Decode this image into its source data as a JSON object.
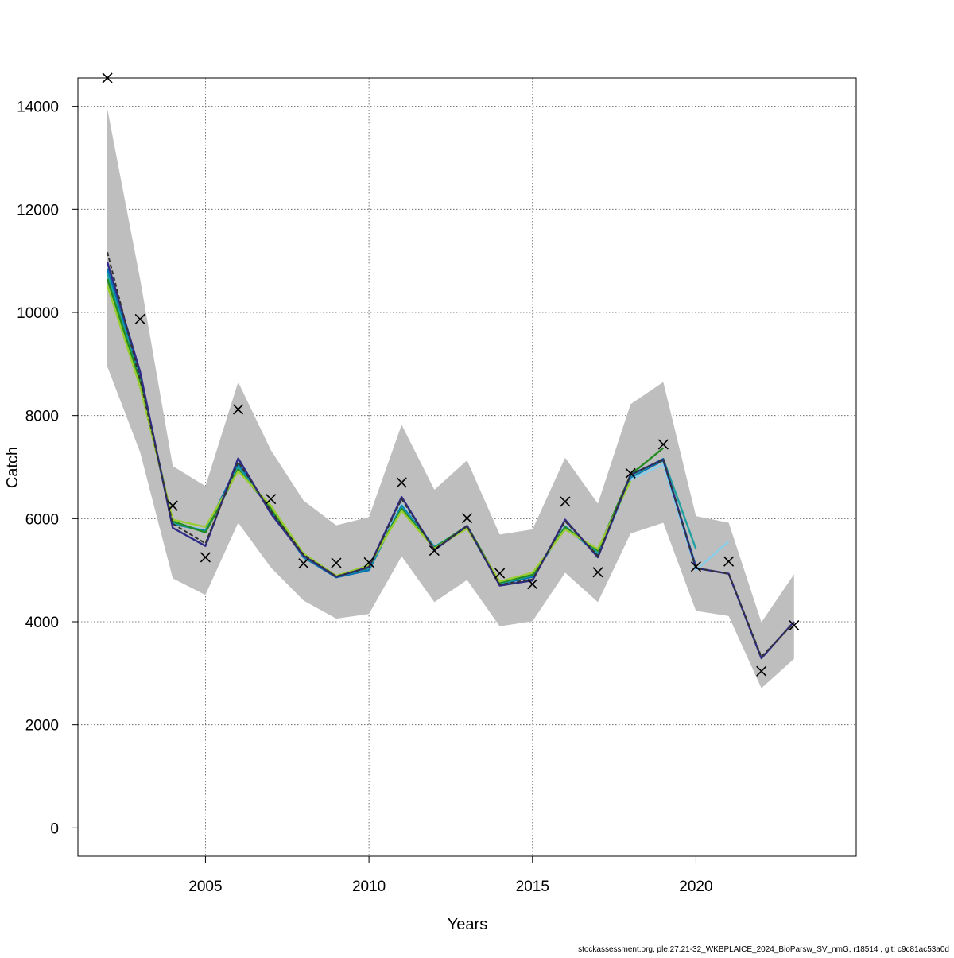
{
  "chart_data": {
    "type": "line",
    "xlabel": "Years",
    "ylabel": "Catch",
    "xlim": [
      2001.1,
      2024.9
    ],
    "ylim": [
      -550,
      14550
    ],
    "x_ticks": [
      2005,
      2010,
      2015,
      2020
    ],
    "y_ticks": [
      0,
      2000,
      4000,
      6000,
      8000,
      10000,
      12000,
      14000
    ],
    "grid": true,
    "footer": "stockassessment.org, ple.27.21-32_WKBPLAICE_2024_BioParsw_SV_nmG, r18514 , git: c9c81ac53a0d",
    "confidence_band": {
      "color": "#bebebe",
      "x": [
        2002,
        2003,
        2004,
        2005,
        2006,
        2007,
        2008,
        2009,
        2010,
        2011,
        2012,
        2013,
        2014,
        2015,
        2016,
        2017,
        2018,
        2019,
        2020,
        2021,
        2022,
        2023
      ],
      "upper": [
        13950,
        10650,
        7020,
        6630,
        8650,
        7330,
        6350,
        5870,
        6030,
        7820,
        6560,
        7130,
        5690,
        5790,
        7180,
        6290,
        8220,
        8650,
        6050,
        5920,
        3990,
        4920
      ],
      "lower": [
        8950,
        7290,
        4840,
        4520,
        5920,
        5050,
        4410,
        4060,
        4150,
        5270,
        4380,
        4810,
        3910,
        4010,
        4950,
        4380,
        5710,
        5920,
        4210,
        4110,
        2710,
        3280
      ]
    },
    "observed": {
      "marker": "x",
      "color": "#000000",
      "x": [
        2002,
        2003,
        2004,
        2005,
        2006,
        2007,
        2008,
        2009,
        2010,
        2011,
        2012,
        2013,
        2014,
        2015,
        2016,
        2017,
        2018,
        2019,
        2020,
        2021,
        2022,
        2023
      ],
      "values": [
        14550,
        9870,
        6250,
        5250,
        8120,
        6380,
        5130,
        5140,
        5150,
        6700,
        5380,
        6010,
        4940,
        4730,
        6330,
        4960,
        6880,
        7440,
        5070,
        5170,
        3040,
        3930
      ]
    },
    "series": [
      {
        "color": "#87ceeb",
        "dashed": false,
        "x": [
          2002,
          2003,
          2004,
          2005,
          2006,
          2007,
          2008,
          2009,
          2010,
          2011,
          2012,
          2013,
          2014,
          2015,
          2016,
          2017,
          2018,
          2019,
          2020,
          2021
        ],
        "values": [
          10800,
          8700,
          5900,
          5780,
          7020,
          6180,
          5260,
          4880,
          5050,
          6280,
          5460,
          5830,
          4740,
          4880,
          5860,
          5300,
          6760,
          7050,
          5000,
          5560
        ]
      },
      {
        "color": "#0072b2",
        "dashed": false,
        "x": [
          2002,
          2003,
          2004,
          2005,
          2006,
          2007,
          2008,
          2009,
          2010,
          2011,
          2012,
          2013,
          2014,
          2015,
          2016,
          2017,
          2018,
          2019,
          2020
        ],
        "values": [
          10850,
          8720,
          5900,
          5760,
          7060,
          6170,
          5250,
          4860,
          5000,
          6250,
          5450,
          5830,
          4730,
          4870,
          5850,
          5310,
          6800,
          7130,
          5070
        ]
      },
      {
        "color": "#20a0a0",
        "dashed": false,
        "x": [
          2002,
          2003,
          2004,
          2005,
          2006,
          2007,
          2008,
          2009,
          2010,
          2011,
          2012,
          2013,
          2014,
          2015,
          2016,
          2017,
          2018,
          2019,
          2020
        ],
        "values": [
          10750,
          8690,
          5920,
          5740,
          7000,
          6190,
          5270,
          4870,
          5040,
          6220,
          5440,
          5850,
          4740,
          4900,
          5840,
          5330,
          6820,
          7160,
          5410
        ]
      },
      {
        "color": "#228b22",
        "dashed": false,
        "x": [
          2002,
          2003,
          2004,
          2005,
          2006,
          2007,
          2008,
          2009,
          2010,
          2011,
          2012,
          2013,
          2014,
          2015,
          2016,
          2017,
          2018,
          2019
        ],
        "values": [
          10650,
          8650,
          5950,
          5730,
          6950,
          6200,
          5280,
          4880,
          5080,
          6190,
          5430,
          5860,
          4760,
          4910,
          5830,
          5380,
          6850,
          7370
        ]
      },
      {
        "color": "#9acd32",
        "dashed": false,
        "x": [
          2002,
          2003,
          2004,
          2005,
          2006,
          2007,
          2008,
          2009,
          2010,
          2011,
          2012,
          2013,
          2014,
          2015,
          2016,
          2017,
          2018
        ],
        "values": [
          10520,
          8560,
          5980,
          5840,
          6920,
          6250,
          5320,
          4890,
          5090,
          6150,
          5420,
          5810,
          4780,
          4950,
          5790,
          5410,
          6730
        ]
      },
      {
        "color": "#2e2a87",
        "dashed": false,
        "x": [
          2002,
          2003,
          2004,
          2005,
          2006,
          2007,
          2008,
          2009,
          2010,
          2011,
          2012,
          2013,
          2014,
          2015,
          2016,
          2017,
          2018,
          2019,
          2020,
          2021,
          2022,
          2023
        ],
        "values": [
          10980,
          8850,
          5820,
          5470,
          7170,
          6100,
          5280,
          4870,
          5060,
          6420,
          5390,
          5860,
          4700,
          4800,
          5980,
          5250,
          6850,
          7150,
          5040,
          4930,
          3290,
          4000
        ]
      },
      {
        "color": "#333333",
        "dashed": true,
        "x": [
          2002,
          2003,
          2004,
          2005,
          2006,
          2007,
          2008,
          2009,
          2010,
          2011,
          2012,
          2013,
          2014,
          2015,
          2016,
          2017,
          2018,
          2019,
          2020,
          2021,
          2022,
          2023
        ],
        "values": [
          11170,
          8700,
          5900,
          5520,
          7100,
          6150,
          5300,
          4880,
          5050,
          6380,
          5400,
          5850,
          4720,
          4820,
          5950,
          5280,
          6860,
          7140,
          5040,
          4930,
          3320,
          3980
        ]
      }
    ]
  }
}
